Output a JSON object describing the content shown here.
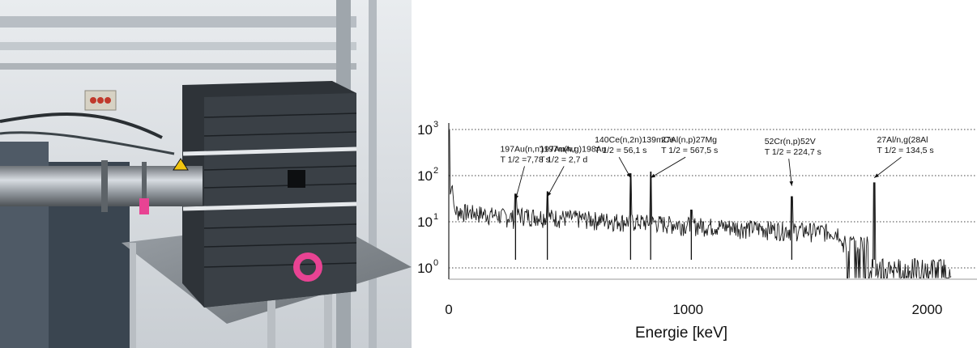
{
  "chart_data": {
    "type": "line",
    "title": "",
    "xlabel": "Energie [keV]",
    "ylabel": "",
    "xlim": [
      0,
      2100
    ],
    "ylim_log10": [
      0,
      3
    ],
    "yscale": "log",
    "grid": "horizontal dotted at decades",
    "x_ticks": [
      0,
      1000,
      2000
    ],
    "x_tick_labels": [
      "0",
      "1000",
      "2000"
    ],
    "y_ticks": [
      1,
      10,
      100,
      1000
    ],
    "y_tick_labels": [
      {
        "base": "10",
        "exp": "0"
      },
      {
        "base": "10",
        "exp": "1"
      },
      {
        "base": "10",
        "exp": "2"
      },
      {
        "base": "10",
        "exp": "3"
      }
    ],
    "peaks": [
      {
        "energy": 279,
        "counts": 40
      },
      {
        "energy": 412,
        "counts": 45
      },
      {
        "energy": 760,
        "counts": 110
      },
      {
        "energy": 844,
        "counts": 120
      },
      {
        "energy": 1014,
        "counts": 18
      },
      {
        "energy": 1434,
        "counts": 35
      },
      {
        "energy": 1779,
        "counts": 70
      }
    ],
    "annotations": [
      {
        "line1": "197Au(n,n')197mAu",
        "line2": "T 1/2 =7,78 s",
        "text_energy": 215,
        "text_counts": 330,
        "arrow_energy": 279,
        "arrow_counts": 30
      },
      {
        "line1": "197Au(n,g)198Au",
        "line2": "T 1/2 = 2,7 d",
        "text_energy": 380,
        "text_counts": 330,
        "arrow_energy": 412,
        "arrow_counts": 35
      },
      {
        "line1": "140Ce(n,2n)139mCe",
        "line2": "T 1/2 = 56,1 s",
        "text_energy": 610,
        "text_counts": 520,
        "arrow_energy": 760,
        "arrow_counts": 90
      },
      {
        "line1": "27Al(n,p)27Mg",
        "line2": "T 1/2 = 567,5 s",
        "text_energy": 888,
        "text_counts": 520,
        "arrow_energy": 844,
        "arrow_counts": 90
      },
      {
        "line1": "52Cr(n,p)52V",
        "line2": "T 1/2 = 224,7 s",
        "text_energy": 1320,
        "text_counts": 480,
        "arrow_energy": 1434,
        "arrow_counts": 60
      },
      {
        "line1": "27Al/n,g(28Al",
        "line2": "T 1/2 = 134,5 s",
        "text_energy": 1790,
        "text_counts": 520,
        "arrow_energy": 1779,
        "arrow_counts": 90
      }
    ]
  }
}
